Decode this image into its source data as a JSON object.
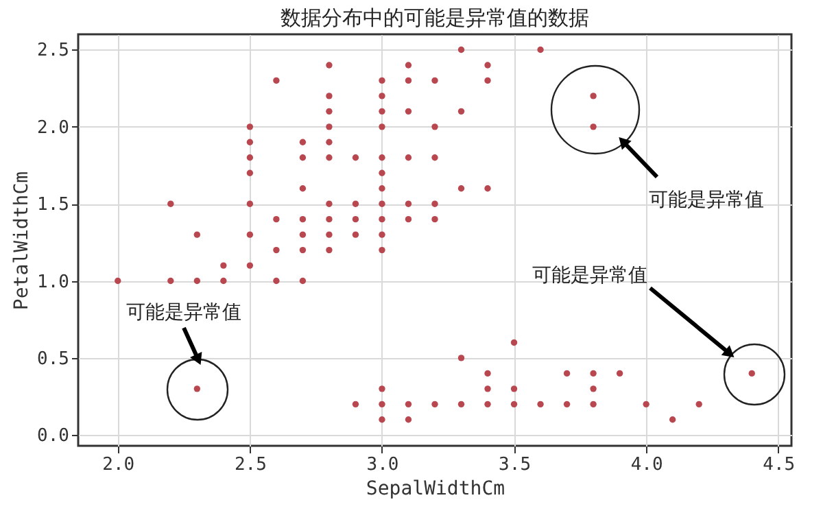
{
  "chart_data": {
    "type": "scatter",
    "title": "数据分布中的可能是异常值的数据",
    "xlabel": "SepalWidthCm",
    "ylabel": "PetalWidthCm",
    "x": [
      3.3,
      3.6,
      2.8,
      3.1,
      3.4,
      2.6,
      3.0,
      3.1,
      3.2,
      3.4,
      2.8,
      3.0,
      3.8,
      2.8,
      3.0,
      3.1,
      3.3,
      2.5,
      2.8,
      3.0,
      3.2,
      3.8,
      2.5,
      2.7,
      2.8,
      2.5,
      2.7,
      2.8,
      2.9,
      3.0,
      3.1,
      3.2,
      2.5,
      3.0,
      2.7,
      3.0,
      3.3,
      3.4,
      2.2,
      2.5,
      2.8,
      2.9,
      3.0,
      3.1,
      3.2,
      2.6,
      2.7,
      2.8,
      2.9,
      3.0,
      3.1,
      3.2,
      2.3,
      2.5,
      2.7,
      2.8,
      2.9,
      3.0,
      2.6,
      2.7,
      2.8,
      3.0,
      2.4,
      2.5,
      2.0,
      2.2,
      2.3,
      2.4,
      2.6,
      2.7,
      3.5,
      3.3,
      3.4,
      3.7,
      3.8,
      3.9,
      4.4,
      2.3,
      3.0,
      3.4,
      3.5,
      3.8,
      2.9,
      3.0,
      3.1,
      3.2,
      3.3,
      3.4,
      3.5,
      3.6,
      3.7,
      3.8,
      4.0,
      4.2,
      3.0,
      3.1,
      4.1
    ],
    "values": [
      2.5,
      2.5,
      2.4,
      2.4,
      2.4,
      2.3,
      2.3,
      2.3,
      2.3,
      2.3,
      2.2,
      2.2,
      2.2,
      2.1,
      2.1,
      2.1,
      2.1,
      2.0,
      2.0,
      2.0,
      2.0,
      2.0,
      1.9,
      1.9,
      1.9,
      1.8,
      1.8,
      1.8,
      1.8,
      1.8,
      1.8,
      1.8,
      1.7,
      1.7,
      1.6,
      1.6,
      1.6,
      1.6,
      1.5,
      1.5,
      1.5,
      1.5,
      1.5,
      1.5,
      1.5,
      1.4,
      1.4,
      1.4,
      1.4,
      1.4,
      1.4,
      1.4,
      1.3,
      1.3,
      1.3,
      1.3,
      1.3,
      1.3,
      1.2,
      1.2,
      1.2,
      1.2,
      1.1,
      1.1,
      1.0,
      1.0,
      1.0,
      1.0,
      1.0,
      1.0,
      0.6,
      0.5,
      0.4,
      0.4,
      0.4,
      0.4,
      0.4,
      0.3,
      0.3,
      0.3,
      0.3,
      0.3,
      0.2,
      0.2,
      0.2,
      0.2,
      0.2,
      0.2,
      0.2,
      0.2,
      0.2,
      0.2,
      0.2,
      0.2,
      0.1,
      0.1,
      0.1
    ],
    "color": "#b9474f",
    "marker": "circle",
    "grid": true,
    "xlim": [
      1.85,
      4.55
    ],
    "ylim": [
      -0.07,
      2.6
    ],
    "xticks": [
      {
        "value": 2.0,
        "label": "2.0"
      },
      {
        "value": 2.5,
        "label": "2.5"
      },
      {
        "value": 3.0,
        "label": "3.0"
      },
      {
        "value": 3.5,
        "label": "3.5"
      },
      {
        "value": 4.0,
        "label": "4.0"
      },
      {
        "value": 4.5,
        "label": "4.5"
      }
    ],
    "yticks": [
      {
        "value": 0.0,
        "label": "0.0"
      },
      {
        "value": 0.5,
        "label": "0.5"
      },
      {
        "value": 1.0,
        "label": "1.0"
      },
      {
        "value": 1.5,
        "label": "1.5"
      },
      {
        "value": 2.0,
        "label": "2.0"
      },
      {
        "value": 2.5,
        "label": "2.5"
      }
    ],
    "annotations": [
      "可能是异常值",
      "可能是异常值",
      "可能是异常值"
    ]
  }
}
